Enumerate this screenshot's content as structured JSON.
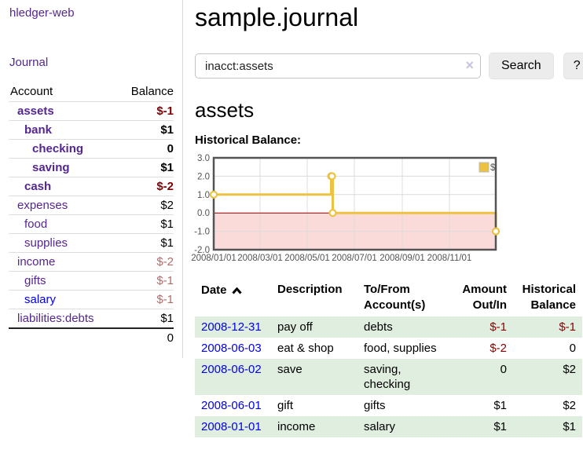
{
  "sidebar": {
    "brand": "hledger-web",
    "nav": {
      "journal": "Journal"
    },
    "accounts_table": {
      "col_account": "Account",
      "col_balance": "Balance",
      "rows": [
        {
          "name": "assets",
          "balance": "$-1",
          "level": 1,
          "in_query": true,
          "visited": true
        },
        {
          "name": "bank",
          "balance": "$1",
          "level": 2,
          "in_query": true,
          "visited": true
        },
        {
          "name": "checking",
          "balance": "0",
          "level": 3,
          "in_query": true,
          "visited": true
        },
        {
          "name": "saving",
          "balance": "$1",
          "level": 3,
          "in_query": true,
          "visited": true
        },
        {
          "name": "cash",
          "balance": "$-2",
          "level": 2,
          "in_query": true,
          "visited": true
        },
        {
          "name": "expenses",
          "balance": "$2",
          "level": 1,
          "in_query": false,
          "visited": true
        },
        {
          "name": "food",
          "balance": "$1",
          "level": 2,
          "in_query": false,
          "visited": true
        },
        {
          "name": "supplies",
          "balance": "$1",
          "level": 2,
          "in_query": false,
          "visited": true
        },
        {
          "name": "income",
          "balance": "$-2",
          "level": 1,
          "in_query": false,
          "visited": true
        },
        {
          "name": "gifts",
          "balance": "$-1",
          "level": 2,
          "in_query": false,
          "visited": true
        },
        {
          "name": "salary",
          "balance": "$-1",
          "level": 2,
          "in_query": false,
          "visited": false
        },
        {
          "name": "liabilities:debts",
          "balance": "$1",
          "level": 1,
          "in_query": false,
          "visited": true
        }
      ],
      "total": "0"
    }
  },
  "main": {
    "title": "sample.journal",
    "search": {
      "value": "inacct:assets",
      "clear_icon": "×",
      "button": "Search",
      "help_button": "?"
    },
    "account_heading": "assets",
    "chart_label": "Historical Balance:",
    "register": {
      "columns": [
        "Date",
        "Description",
        "To/From Account(s)",
        "Amount Out/In",
        "Historical Balance"
      ],
      "sort_icon": "chevron-up",
      "rows": [
        {
          "date": "2008-12-31",
          "description": "pay off",
          "accounts": "debts",
          "amount": "$-1",
          "balance": "$-1"
        },
        {
          "date": "2008-06-03",
          "description": "eat & shop",
          "accounts": "food, supplies",
          "amount": "$-2",
          "balance": "0"
        },
        {
          "date": "2008-06-02",
          "description": "save",
          "accounts": "saving, checking",
          "amount": "0",
          "balance": "$2"
        },
        {
          "date": "2008-06-01",
          "description": "gift",
          "accounts": "gifts",
          "amount": "$1",
          "balance": "$2"
        },
        {
          "date": "2008-01-01",
          "description": "income",
          "accounts": "salary",
          "amount": "$1",
          "balance": "$1"
        }
      ]
    }
  },
  "chart_data": {
    "type": "line",
    "step": true,
    "title": "Historical Balance:",
    "series": [
      {
        "name": "$",
        "points": [
          [
            "2008-01-01",
            1
          ],
          [
            "2008-06-01",
            2
          ],
          [
            "2008-06-02",
            2
          ],
          [
            "2008-06-03",
            0
          ],
          [
            "2008-12-31",
            -1
          ]
        ]
      }
    ],
    "x_ticks": [
      "2008/01/01",
      "2008/03/01",
      "2008/05/01",
      "2008/07/01",
      "2008/09/01",
      "2008/11/01"
    ],
    "y_ticks": [
      3.0,
      2.0,
      1.0,
      0.0,
      -1.0,
      -2.0
    ],
    "xlim": [
      "2008-01-01",
      "2008-12-31"
    ],
    "ylim": [
      -2,
      3
    ],
    "legend": {
      "position": "top-right",
      "label": "$"
    },
    "grid": true,
    "colors": {
      "series": "#edc240",
      "marker_fill": "#ffffff",
      "negative_region": "#fbdada",
      "zero_line": "#8b0000",
      "grid": "#dcdcdc",
      "border": "#545454",
      "tick_text": "#545454",
      "legend_border": "#bbbbbb"
    }
  },
  "colors": {
    "visited_link": "#54278f",
    "unvisited_link": "#0000ee",
    "negative_strong": "#800000",
    "negative_muted": "#b26b6b",
    "row_stripe_green": "#e0eedf"
  }
}
